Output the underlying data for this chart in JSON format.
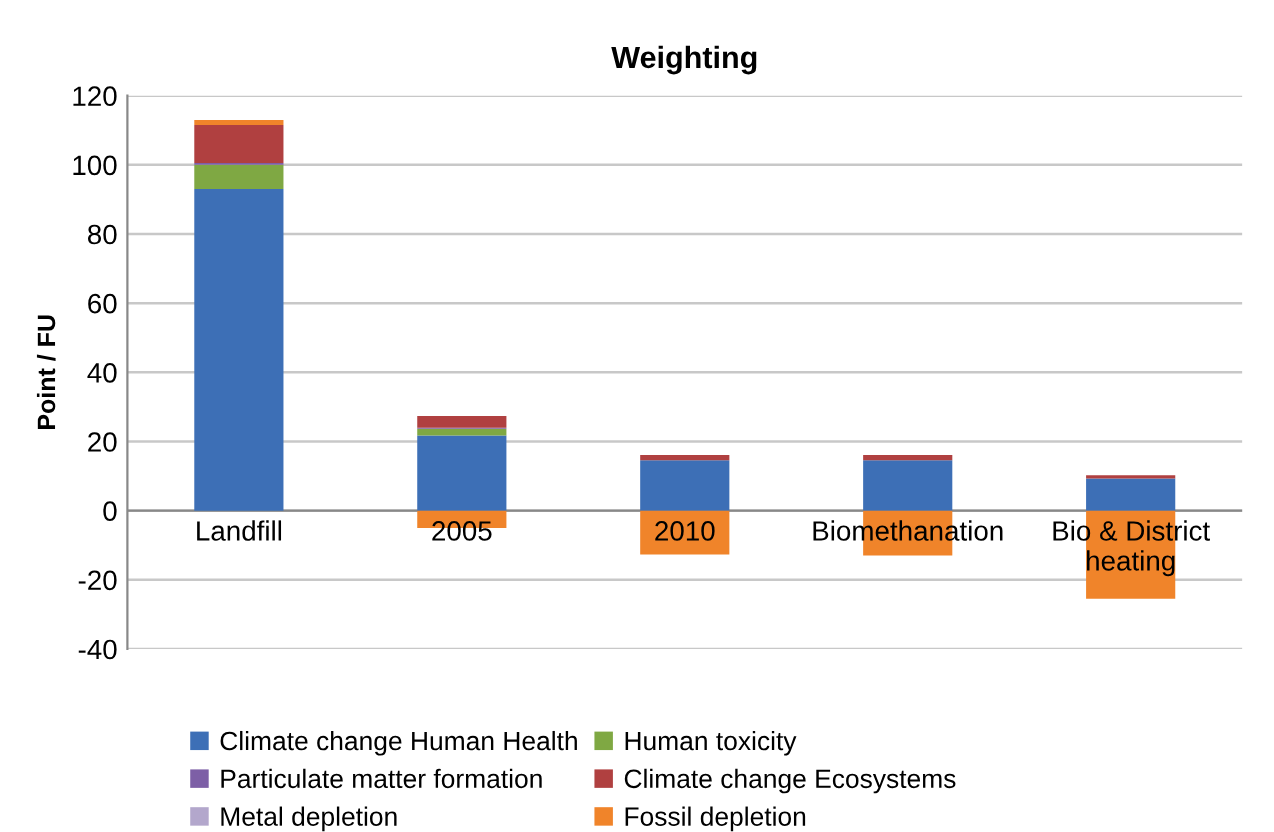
{
  "chart_data": {
    "type": "bar",
    "title": "Weighting",
    "ylabel": "Point / FU",
    "stacked": true,
    "categories": [
      "Landfill",
      "2005",
      "2010",
      "Biomethanation",
      "Bio & District heating"
    ],
    "series": [
      {
        "name": "Climate change Human Health",
        "color": "#3d6fb6",
        "values": [
          93,
          21.7,
          14.6,
          14.6,
          9.3
        ]
      },
      {
        "name": "Human toxicity",
        "color": "#7fa843",
        "values": [
          7,
          2,
          0,
          0,
          0
        ]
      },
      {
        "name": "Particulate matter formation",
        "color": "#7d5fa6",
        "values": [
          0.5,
          0.3,
          0,
          0,
          0
        ]
      },
      {
        "name": "Climate change Ecosystems",
        "color": "#b04040",
        "values": [
          11,
          3.4,
          1.5,
          1.5,
          0.9
        ]
      },
      {
        "name": "Metal depletion",
        "color": "#b3a7cc",
        "values": [
          null,
          null,
          null,
          null,
          null
        ]
      },
      {
        "name": "Fossil depletion",
        "color": "#f0842a",
        "values": [
          1.5,
          -5,
          -12.7,
          -13,
          -25.5
        ]
      }
    ],
    "ylim": [
      -40,
      120
    ],
    "yticks": [
      -40,
      -20,
      0,
      20,
      40,
      60,
      80,
      100,
      120
    ],
    "grid": "y",
    "legend": "bottom"
  }
}
